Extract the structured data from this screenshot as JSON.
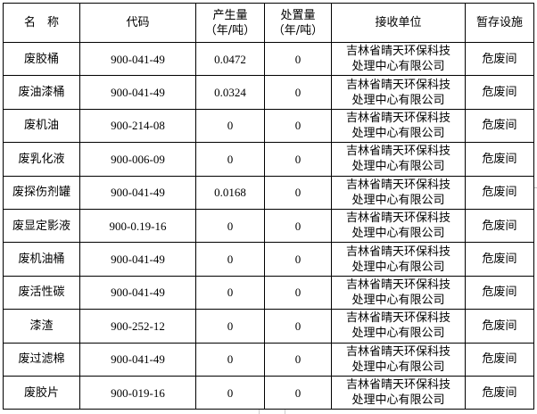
{
  "headers": {
    "name": "名　称",
    "code": "代码",
    "produced": [
      "产生量",
      "（年/吨）"
    ],
    "disposed": [
      "处置量",
      "（年/吨）"
    ],
    "receiver": "接收单位",
    "storage": "暂存设施"
  },
  "rows": [
    {
      "name": "废胶桶",
      "code": "900-041-49",
      "produced": "0.0472",
      "disposed": "0",
      "receiver": [
        "吉林省晴天环保科技",
        "处理中心有限公司"
      ],
      "storage": "危废间"
    },
    {
      "name": "废油漆桶",
      "code": "900-041-49",
      "produced": "0.0324",
      "disposed": "0",
      "receiver": [
        "吉林省晴天环保科技",
        "处理中心有限公司"
      ],
      "storage": "危废间"
    },
    {
      "name": "废机油",
      "code": "900-214-08",
      "produced": "0",
      "disposed": "0",
      "receiver": [
        "吉林省晴天环保科技",
        "处理中心有限公司"
      ],
      "storage": "危废间"
    },
    {
      "name": "废乳化液",
      "code": "900-006-09",
      "produced": "0",
      "disposed": "0",
      "receiver": [
        "吉林省晴天环保科技",
        "处理中心有限公司"
      ],
      "storage": "危废间"
    },
    {
      "name": "废探伤剂罐",
      "code": "900-041-49",
      "produced": "0.0168",
      "disposed": "0",
      "receiver": [
        "吉林省晴天环保科技",
        "处理中心有限公司"
      ],
      "storage": "危废间"
    },
    {
      "name": "废显定影液",
      "code": "900-0.19-16",
      "produced": "0",
      "disposed": "0",
      "receiver": [
        "吉林省晴天环保科技",
        "处理中心有限公司"
      ],
      "storage": "危废间"
    },
    {
      "name": "废机油桶",
      "code": "900-041-49",
      "produced": "0",
      "disposed": "0",
      "receiver": [
        "吉林省晴天环保科技",
        "处理中心有限公司"
      ],
      "storage": "危废间"
    },
    {
      "name": "废活性碳",
      "code": "900-041-49",
      "produced": "0",
      "disposed": "0",
      "receiver": [
        "吉林省晴天环保科技",
        "处理中心有限公司"
      ],
      "storage": "危废间"
    },
    {
      "name": "漆渣",
      "code": "900-252-12",
      "produced": "0",
      "disposed": "0",
      "receiver": [
        "吉林省晴天环保科技",
        "处理中心有限公司"
      ],
      "storage": "危废间"
    },
    {
      "name": "废过滤棉",
      "code": "900-041-49",
      "produced": "0",
      "disposed": "0",
      "receiver": [
        "吉林省晴天环保科技",
        "处理中心有限公司"
      ],
      "storage": "危废间"
    },
    {
      "name": "废胶片",
      "code": "900-019-16",
      "produced": "0",
      "disposed": "0",
      "receiver": [
        "吉林省晴天环保科技",
        "处理中心有限公司"
      ],
      "storage": "危废间"
    }
  ]
}
